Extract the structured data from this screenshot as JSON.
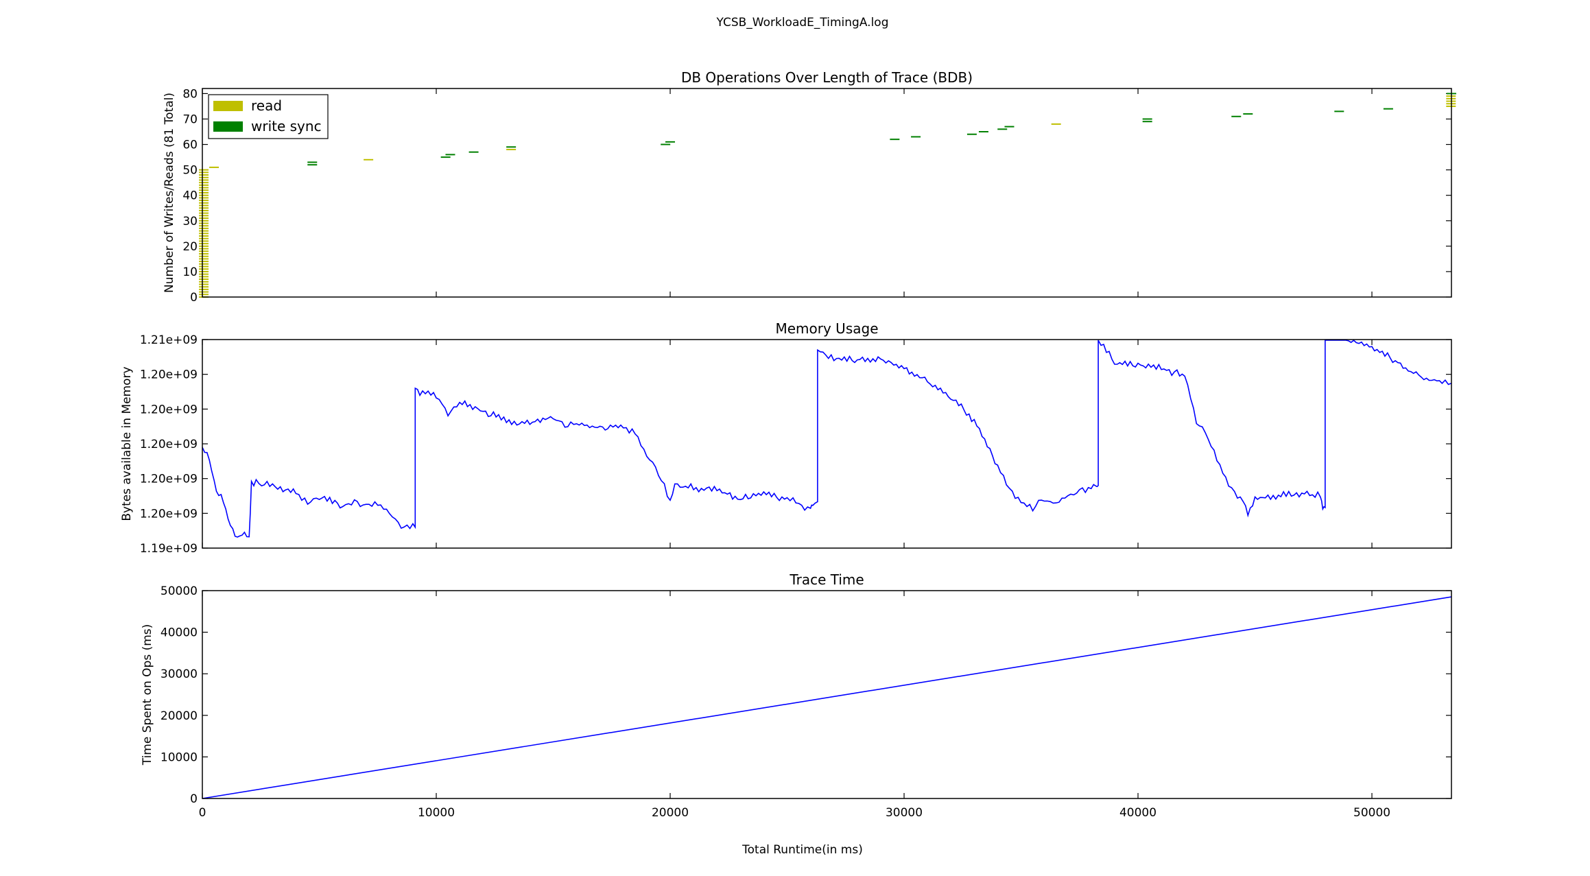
{
  "figure_title": "YCSB_WorkloadE_TimingA.log",
  "shared_xlabel": "Total Runtime(in ms)",
  "chart_data": [
    {
      "type": "scatter",
      "title": "DB Operations Over Length of Trace (BDB)",
      "ylabel": "Number of Writes/Reads (81 Total)",
      "xlim": [
        0,
        53400
      ],
      "ylim": [
        0,
        82
      ],
      "yticks": [
        0,
        10,
        20,
        30,
        40,
        50,
        60,
        70,
        80
      ],
      "xticks": [
        0,
        10000,
        20000,
        30000,
        40000,
        50000
      ],
      "grid": false,
      "legend_position": "top-left",
      "colors": {
        "read": "#bfbf00",
        "write sync": "#008000"
      },
      "series": [
        {
          "name": "read",
          "points": [
            [
              60,
              0
            ],
            [
              60,
              1
            ],
            [
              60,
              2
            ],
            [
              60,
              3
            ],
            [
              60,
              4
            ],
            [
              60,
              5
            ],
            [
              60,
              6
            ],
            [
              60,
              7
            ],
            [
              60,
              8
            ],
            [
              60,
              9
            ],
            [
              60,
              10
            ],
            [
              60,
              11
            ],
            [
              60,
              12
            ],
            [
              60,
              13
            ],
            [
              60,
              14
            ],
            [
              60,
              15
            ],
            [
              60,
              16
            ],
            [
              60,
              17
            ],
            [
              60,
              18
            ],
            [
              60,
              19
            ],
            [
              60,
              20
            ],
            [
              60,
              21
            ],
            [
              60,
              22
            ],
            [
              60,
              23
            ],
            [
              60,
              24
            ],
            [
              60,
              25
            ],
            [
              60,
              26
            ],
            [
              60,
              27
            ],
            [
              60,
              28
            ],
            [
              60,
              29
            ],
            [
              60,
              30
            ],
            [
              60,
              31
            ],
            [
              60,
              32
            ],
            [
              60,
              33
            ],
            [
              60,
              34
            ],
            [
              60,
              35
            ],
            [
              60,
              36
            ],
            [
              60,
              37
            ],
            [
              60,
              38
            ],
            [
              60,
              39
            ],
            [
              60,
              40
            ],
            [
              60,
              41
            ],
            [
              60,
              42
            ],
            [
              60,
              43
            ],
            [
              60,
              44
            ],
            [
              60,
              45
            ],
            [
              60,
              46
            ],
            [
              60,
              47
            ],
            [
              60,
              48
            ],
            [
              60,
              49
            ],
            [
              60,
              50
            ],
            [
              500,
              51
            ],
            [
              7100,
              54
            ],
            [
              13200,
              58
            ],
            [
              36500,
              68
            ],
            [
              53380,
              75
            ],
            [
              53380,
              76
            ],
            [
              53380,
              77
            ],
            [
              53380,
              78
            ],
            [
              53380,
              79
            ]
          ]
        },
        {
          "name": "write sync",
          "points": [
            [
              4700,
              52
            ],
            [
              4700,
              53
            ],
            [
              10400,
              55
            ],
            [
              10600,
              56
            ],
            [
              11600,
              57
            ],
            [
              13200,
              59
            ],
            [
              19800,
              60
            ],
            [
              20000,
              61
            ],
            [
              29600,
              62
            ],
            [
              30500,
              63
            ],
            [
              32900,
              64
            ],
            [
              33400,
              65
            ],
            [
              34200,
              66
            ],
            [
              34500,
              67
            ],
            [
              40400,
              69
            ],
            [
              40400,
              70
            ],
            [
              44200,
              71
            ],
            [
              44700,
              72
            ],
            [
              48600,
              73
            ],
            [
              50700,
              74
            ],
            [
              53400,
              80
            ]
          ]
        }
      ]
    },
    {
      "type": "line",
      "title": "Memory Usage",
      "ylabel": "Bytes available in Memory",
      "xlim": [
        0,
        53400
      ],
      "ylim": [
        1192000000,
        1210000000
      ],
      "yticks": [
        1192000000,
        1195000000,
        1198000000,
        1201000000,
        1204000000,
        1207000000,
        1210000000
      ],
      "ytick_labels": [
        "1.19e+09",
        "1.20e+09",
        "1.20e+09",
        "1.20e+09",
        "1.20e+09",
        "1.20e+09",
        "1.21e+09"
      ],
      "xticks": [
        0,
        10000,
        20000,
        30000,
        40000,
        50000
      ],
      "grid": false,
      "color": "#0000ff",
      "series": [
        {
          "x": [
            0,
            300,
            600,
            900,
            1200,
            1500,
            1800,
            2000,
            2100,
            2300,
            3000,
            4000,
            4500,
            5000,
            6000,
            6500,
            7000,
            7500,
            8000,
            8500,
            9000,
            9100,
            9300,
            10000,
            10500,
            11000,
            12000,
            13000,
            14000,
            15000,
            15500,
            16000,
            17000,
            18000,
            18500,
            19000,
            19500,
            20000,
            20200,
            21000,
            22000,
            23000,
            24000,
            25000,
            25500,
            26000,
            26100,
            26300,
            27000,
            28000,
            29000,
            30000,
            31000,
            32000,
            33000,
            34000,
            34500,
            35000,
            35500,
            36000,
            36500,
            37000,
            37500,
            38000,
            38200,
            38300,
            39000,
            40000,
            41000,
            42000,
            42500,
            43000,
            43500,
            44000,
            44500,
            44700,
            45000,
            46000,
            47000,
            47800,
            47900,
            48000,
            49000,
            50000,
            51000,
            52000,
            53000,
            53400
          ],
          "y": [
            1200700000,
            1199500000,
            1197000000,
            1196000000,
            1194000000,
            1192800000,
            1193300000,
            1192700000,
            1197500000,
            1197600000,
            1197300000,
            1196800000,
            1196000000,
            1196500000,
            1195500000,
            1196000000,
            1195600000,
            1196000000,
            1195000000,
            1194000000,
            1193800000,
            1205800000,
            1205500000,
            1205300000,
            1203600000,
            1204500000,
            1203800000,
            1203000000,
            1202800000,
            1203300000,
            1202600000,
            1202700000,
            1202400000,
            1202500000,
            1202000000,
            1200000000,
            1198500000,
            1196000000,
            1197500000,
            1197200000,
            1197000000,
            1196300000,
            1196700000,
            1196300000,
            1195800000,
            1195300000,
            1196000000,
            1209100000,
            1208400000,
            1208100000,
            1208300000,
            1207500000,
            1206500000,
            1205000000,
            1203000000,
            1199000000,
            1197000000,
            1196000000,
            1195500000,
            1196200000,
            1195800000,
            1196500000,
            1197000000,
            1197300000,
            1197400000,
            1210000000,
            1208000000,
            1207800000,
            1207500000,
            1206900000,
            1203000000,
            1201500000,
            1199000000,
            1197000000,
            1196000000,
            1195000000,
            1196300000,
            1196500000,
            1196700000,
            1196500000,
            1195500000,
            1211600000,
            1210000000,
            1209300000,
            1208100000,
            1206800000,
            1206400000,
            1206200000
          ]
        }
      ]
    },
    {
      "type": "line",
      "title": "Trace Time",
      "ylabel": "Time Spent on Ops (ms)",
      "xlim": [
        0,
        53400
      ],
      "ylim": [
        0,
        50000
      ],
      "yticks": [
        0,
        10000,
        20000,
        30000,
        40000,
        50000
      ],
      "xticks": [
        0,
        10000,
        20000,
        30000,
        40000,
        50000
      ],
      "grid": false,
      "color": "#0000ff",
      "series": [
        {
          "x": [
            0,
            53400
          ],
          "y": [
            0,
            48500
          ]
        }
      ]
    }
  ]
}
